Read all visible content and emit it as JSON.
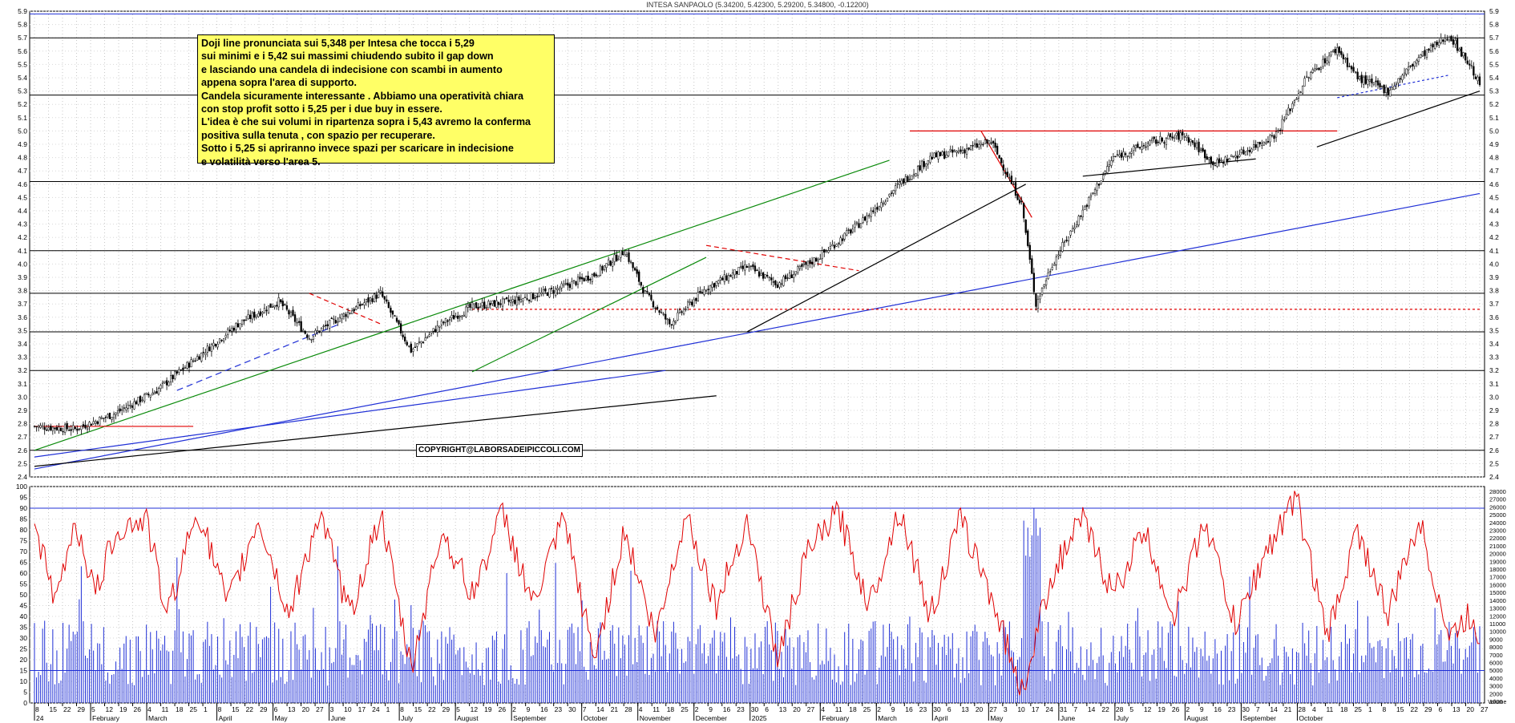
{
  "title": "INTESA SANPAOLO (5.34200, 5.42300, 5.29200, 5.34800, -0.12200)",
  "copyright": "COPYRIGHT@LABORSADEIPICCOLI.COM",
  "annotation_lines": [
    "Doji line pronunciata sui 5,348 per Intesa che tocca i 5,29",
    "sui minimi e i 5,42 sui massimi chiudendo subito il gap down",
    "e lasciando una candela di indecisione con scambi in aumento",
    "appena sopra l'area di supporto.",
    "Candela sicuramente interessante . Abbiamo una operatività chiara",
    "con stop profit sotto i 5,25 per i due buy in essere.",
    "L'idea è che sui volumi in ripartenza sopra i 5,43 avremo la conferma",
    "positiva sulla tenuta , con spazio per recuperare.",
    "Sotto i 5,25  si apriranno invece spazi per scaricare in indecisione",
    "e volatilità verso l'area 5."
  ],
  "colors": {
    "candle": "#000000",
    "volume": "#1f2fd6",
    "oscillator": "#e00000",
    "trend_blue": "#1f2fd6",
    "trend_green": "#0a8a0a",
    "trend_red": "#e00000",
    "note_bg": "#ffff66"
  },
  "chart_data": [
    {
      "type": "candlestick",
      "title": "INTESA SANPAOLO (5.34200, 5.42300, 5.29200, 5.34800, -0.12200)",
      "ylim": [
        2.4,
        5.9
      ],
      "price_ticks": [
        "2.4",
        "2.5",
        "2.6",
        "2.7",
        "2.8",
        "2.9",
        "3.0",
        "3.1",
        "3.2",
        "3.3",
        "3.4",
        "3.5",
        "3.6",
        "3.7",
        "3.8",
        "3.9",
        "4.0",
        "4.1",
        "4.2",
        "4.3",
        "4.4",
        "4.5",
        "4.6",
        "4.7",
        "4.8",
        "4.9",
        "5.0",
        "5.1",
        "5.2",
        "5.3",
        "5.4",
        "5.5",
        "5.6",
        "5.7",
        "5.8",
        "5.9"
      ],
      "last_bar": {
        "open": 5.342,
        "high": 5.423,
        "low": 5.292,
        "close": 5.348,
        "change": -0.122
      },
      "approx_close_path": [
        [
          0,
          2.78
        ],
        [
          20,
          2.76
        ],
        [
          40,
          2.88
        ],
        [
          60,
          3.05
        ],
        [
          80,
          3.3
        ],
        [
          100,
          3.55
        ],
        [
          120,
          3.72
        ],
        [
          135,
          3.45
        ],
        [
          150,
          3.6
        ],
        [
          170,
          3.78
        ],
        [
          185,
          3.35
        ],
        [
          200,
          3.55
        ],
        [
          215,
          3.68
        ],
        [
          235,
          3.72
        ],
        [
          255,
          3.8
        ],
        [
          275,
          3.92
        ],
        [
          290,
          4.1
        ],
        [
          300,
          3.78
        ],
        [
          312,
          3.55
        ],
        [
          330,
          3.82
        ],
        [
          350,
          3.98
        ],
        [
          365,
          3.85
        ],
        [
          385,
          4.05
        ],
        [
          405,
          4.3
        ],
        [
          425,
          4.6
        ],
        [
          440,
          4.8
        ],
        [
          455,
          4.85
        ],
        [
          470,
          4.92
        ],
        [
          485,
          4.45
        ],
        [
          492,
          3.7
        ],
        [
          500,
          4.0
        ],
        [
          515,
          4.4
        ],
        [
          530,
          4.8
        ],
        [
          550,
          4.92
        ],
        [
          565,
          4.97
        ],
        [
          580,
          4.75
        ],
        [
          595,
          4.85
        ],
        [
          610,
          4.98
        ],
        [
          625,
          5.4
        ],
        [
          640,
          5.62
        ],
        [
          650,
          5.4
        ],
        [
          665,
          5.3
        ],
        [
          680,
          5.55
        ],
        [
          695,
          5.72
        ],
        [
          705,
          5.5
        ],
        [
          710,
          5.348
        ]
      ],
      "horizontal_levels": [
        5.88,
        5.7,
        5.27,
        4.62,
        4.1,
        3.78,
        3.49,
        3.2,
        2.6
      ]
    },
    {
      "type": "line+bar",
      "ylim_left": [
        0,
        100
      ],
      "left_ticks": [
        "0",
        "5",
        "10",
        "15",
        "20",
        "25",
        "30",
        "35",
        "40",
        "45",
        "50",
        "55",
        "60",
        "65",
        "70",
        "75",
        "80",
        "85",
        "90",
        "95",
        "100"
      ],
      "right_ticks": [
        "1000",
        "2000",
        "3000",
        "4000",
        "5000",
        "6000",
        "7000",
        "8000",
        "9000",
        "10000",
        "11000",
        "12000",
        "13000",
        "14000",
        "15000",
        "16000",
        "17000",
        "18000",
        "19000",
        "20000",
        "21000",
        "22000",
        "23000",
        "24000",
        "25000",
        "26000",
        "27000",
        "28000"
      ],
      "right_unit": "Volume",
      "levels": [
        90,
        15
      ],
      "oscillator_approx": [
        [
          0,
          85
        ],
        [
          10,
          45
        ],
        [
          20,
          85
        ],
        [
          30,
          50
        ],
        [
          40,
          80
        ],
        [
          55,
          85
        ],
        [
          65,
          40
        ],
        [
          80,
          90
        ],
        [
          95,
          45
        ],
        [
          110,
          85
        ],
        [
          125,
          40
        ],
        [
          140,
          88
        ],
        [
          155,
          40
        ],
        [
          170,
          88
        ],
        [
          185,
          15
        ],
        [
          200,
          80
        ],
        [
          215,
          50
        ],
        [
          230,
          88
        ],
        [
          245,
          45
        ],
        [
          260,
          85
        ],
        [
          275,
          20
        ],
        [
          290,
          80
        ],
        [
          305,
          30
        ],
        [
          320,
          88
        ],
        [
          335,
          45
        ],
        [
          350,
          85
        ],
        [
          365,
          20
        ],
        [
          380,
          70
        ],
        [
          395,
          88
        ],
        [
          410,
          45
        ],
        [
          425,
          90
        ],
        [
          440,
          40
        ],
        [
          455,
          85
        ],
        [
          470,
          50
        ],
        [
          485,
          5
        ],
        [
          500,
          60
        ],
        [
          515,
          85
        ],
        [
          530,
          50
        ],
        [
          545,
          80
        ],
        [
          560,
          40
        ],
        [
          575,
          85
        ],
        [
          590,
          35
        ],
        [
          605,
          70
        ],
        [
          620,
          95
        ],
        [
          635,
          30
        ],
        [
          650,
          80
        ],
        [
          665,
          40
        ],
        [
          680,
          85
        ],
        [
          695,
          30
        ],
        [
          705,
          40
        ],
        [
          710,
          30
        ]
      ]
    }
  ],
  "x_axis": {
    "day_labels": [
      "8",
      "15",
      "22",
      "29",
      "5",
      "12",
      "19",
      "26",
      "4",
      "11",
      "18",
      "25",
      "1",
      "8",
      "15",
      "22",
      "29",
      "6",
      "13",
      "20",
      "27",
      "3",
      "10",
      "17",
      "24",
      "1",
      "8",
      "15",
      "22",
      "29",
      "5",
      "12",
      "19",
      "26",
      "2",
      "9",
      "16",
      "23",
      "30",
      "7",
      "14",
      "21",
      "28",
      "4",
      "11",
      "18",
      "25",
      "2",
      "9",
      "16",
      "23",
      "30",
      "6",
      "13",
      "20",
      "27",
      "4",
      "11",
      "18",
      "25",
      "2",
      "9",
      "16",
      "23",
      "30",
      "6",
      "13",
      "20",
      "27",
      "3",
      "10",
      "17",
      "24",
      "31",
      "7",
      "14",
      "22",
      "28",
      "5",
      "12",
      "19",
      "26",
      "2",
      "9",
      "16",
      "23",
      "30",
      "7",
      "14",
      "21",
      "28",
      "4",
      "11",
      "18",
      "25",
      "1",
      "8",
      "15",
      "22",
      "29",
      "6",
      "13",
      "20",
      "27"
    ],
    "month_labels": [
      "24",
      "February",
      "March",
      "April",
      "May",
      "June",
      "July",
      "August",
      "September",
      "October",
      "November",
      "December",
      "2025",
      "February",
      "March",
      "April",
      "May",
      "June",
      "July",
      "August",
      "September",
      "October"
    ],
    "month_day_index": [
      0,
      4,
      8,
      13,
      17,
      21,
      26,
      30,
      34,
      39,
      43,
      47,
      51,
      56,
      60,
      64,
      68,
      73,
      77,
      82,
      86,
      90
    ]
  }
}
